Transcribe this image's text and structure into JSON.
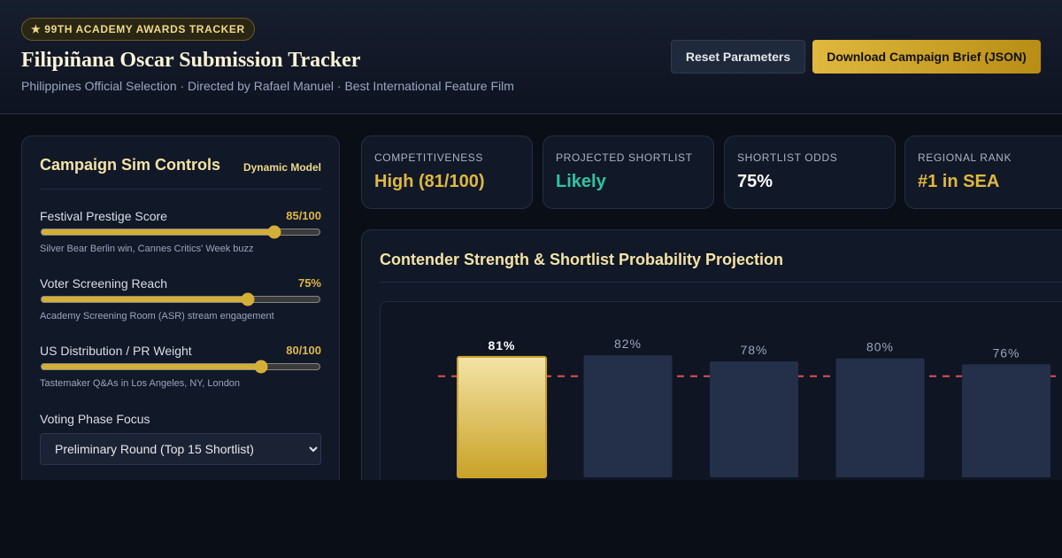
{
  "header": {
    "badge": "★ 99TH ACADEMY AWARDS TRACKER",
    "title": "Filipiñana Oscar Submission Tracker",
    "subtitle": "Philippines Official Selection · Directed by Rafael Manuel · Best International Feature Film",
    "buttons": [
      "Reset Parameters",
      "Download Campaign Brief (JSON)"
    ]
  },
  "controls": {
    "title": "Campaign Sim Controls",
    "tag": "Dynamic Model",
    "sliders": [
      {
        "label": "Festival Prestige Score",
        "value": 85,
        "value_label": "85/100",
        "note": "Silver Bear Berlin win, Cannes Critics' Week buzz"
      },
      {
        "label": "Voter Screening Reach",
        "value": 75,
        "value_label": "75%",
        "note": "Academy Screening Room (ASR) stream engagement"
      },
      {
        "label": "US Distribution / PR Weight",
        "value": 80,
        "value_label": "80/100",
        "note": "Tastemaker Q&As in Los Angeles, NY, London"
      }
    ],
    "select_label": "Voting Phase Focus",
    "select_value": "Preliminary Round (Top 15 Shortlist)"
  },
  "stats": [
    {
      "label": "COMPETITIVENESS",
      "value": "High (81/100)",
      "color": "#e0b73e"
    },
    {
      "label": "PROJECTED SHORTLIST",
      "value": "Likely",
      "color": "#2ec4a6"
    },
    {
      "label": "SHORTLIST ODDS",
      "value": "75%",
      "color": "#ffffff"
    },
    {
      "label": "REGIONAL RANK",
      "value": "#1 in SEA",
      "color": "#e0b73e"
    }
  ],
  "chart_data": {
    "type": "bar",
    "title": "Contender Strength & Shortlist Probability Projection",
    "values": [
      81,
      82,
      78,
      80,
      76
    ],
    "value_labels": [
      "81%",
      "82%",
      "78%",
      "80%",
      "76%"
    ],
    "colors": [
      "#c9a227",
      "#243049",
      "#243049",
      "#243049",
      "#243049"
    ],
    "threshold": 68,
    "threshold_color": "#e0524f",
    "ylim": [
      0,
      100
    ]
  }
}
